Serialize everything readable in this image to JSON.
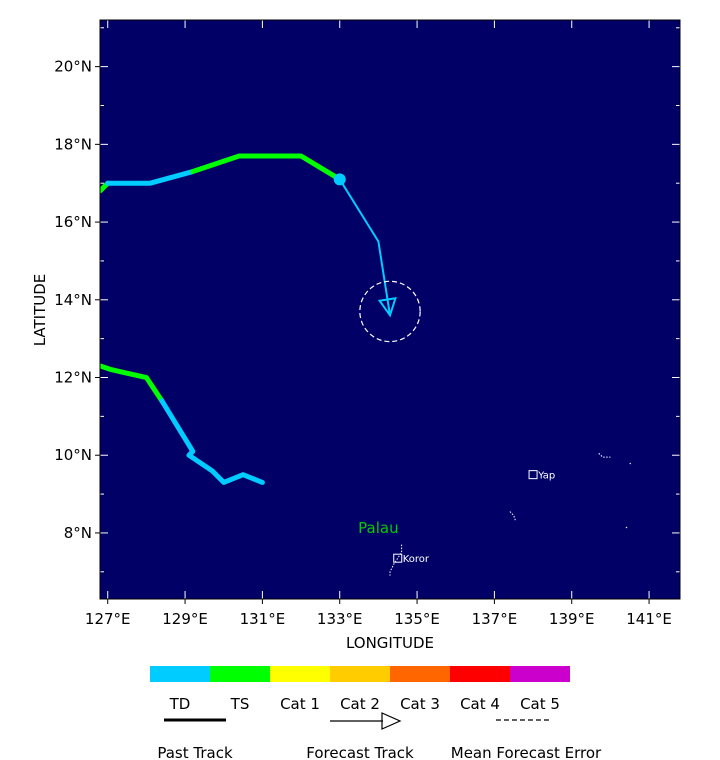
{
  "map": {
    "background_color": "#000066",
    "lon_range": [
      126.8,
      141.8
    ],
    "lat_range": [
      6.3,
      21.2
    ],
    "x_axis_title": "LONGITUDE",
    "y_axis_title": "LATITUDE",
    "lon_ticks": [
      127,
      129,
      131,
      133,
      135,
      137,
      139,
      141
    ],
    "lon_tick_labels": [
      "127°E",
      "129°E",
      "131°E",
      "133°E",
      "135°E",
      "137°E",
      "139°E",
      "141°E"
    ],
    "lat_ticks": [
      8,
      10,
      12,
      14,
      16,
      18,
      20
    ],
    "lat_tick_labels": [
      "8°N",
      "10°N",
      "12°N",
      "14°N",
      "16°N",
      "18°N",
      "20°N"
    ]
  },
  "tracks": [
    {
      "kind": "past",
      "segments": [
        {
          "category": "TS",
          "points": [
            [
              126.8,
              16.8
            ],
            [
              127.0,
              17.0
            ]
          ]
        },
        {
          "category": "TD",
          "points": [
            [
              127.0,
              17.0
            ],
            [
              128.1,
              17.0
            ],
            [
              129.2,
              17.3
            ]
          ]
        },
        {
          "category": "TS",
          "points": [
            [
              129.2,
              17.3
            ],
            [
              130.4,
              17.7
            ],
            [
              132.0,
              17.7
            ],
            [
              133.0,
              17.1
            ]
          ]
        }
      ],
      "current_position": [
        133.0,
        17.1
      ],
      "current_category": "TD"
    },
    {
      "kind": "past",
      "segments": [
        {
          "category": "TS",
          "points": [
            [
              126.8,
              12.3
            ],
            [
              127.1,
              12.2
            ],
            [
              128.0,
              12.0
            ],
            [
              128.4,
              11.4
            ]
          ]
        },
        {
          "category": "TD",
          "points": [
            [
              128.4,
              11.4
            ],
            [
              129.2,
              10.1
            ],
            [
              129.1,
              10.0
            ],
            [
              129.7,
              9.6
            ],
            [
              130.0,
              9.3
            ],
            [
              130.5,
              9.5
            ],
            [
              131.0,
              9.3
            ]
          ]
        }
      ]
    }
  ],
  "forecast_track": {
    "category": "TD",
    "points": [
      [
        133.0,
        17.1
      ],
      [
        134.0,
        15.5
      ],
      [
        134.3,
        13.6
      ]
    ],
    "error_circle": {
      "center": [
        134.3,
        13.7
      ],
      "radius_deg": 0.78
    }
  },
  "locations": [
    {
      "name": "Yap",
      "lon": 138.0,
      "lat": 9.5
    },
    {
      "name": "Koror",
      "lon": 134.5,
      "lat": 7.35
    }
  ],
  "region_labels": [
    {
      "name": "Palau",
      "lon": 134.0,
      "lat": 8.0,
      "color": "#00cc00"
    }
  ],
  "legend": {
    "categories": [
      {
        "label": "TD",
        "color": "#00ccff"
      },
      {
        "label": "TS",
        "color": "#00ff00"
      },
      {
        "label": "Cat 1",
        "color": "#ffff00"
      },
      {
        "label": "Cat 2",
        "color": "#ffcc00"
      },
      {
        "label": "Cat 3",
        "color": "#ff6600"
      },
      {
        "label": "Cat 4",
        "color": "#ff0000"
      },
      {
        "label": "Cat 5",
        "color": "#cc00cc"
      }
    ],
    "past_track_label": "Past Track",
    "forecast_track_label": "Forecast Track",
    "mean_error_label": "Mean Forecast Error"
  }
}
